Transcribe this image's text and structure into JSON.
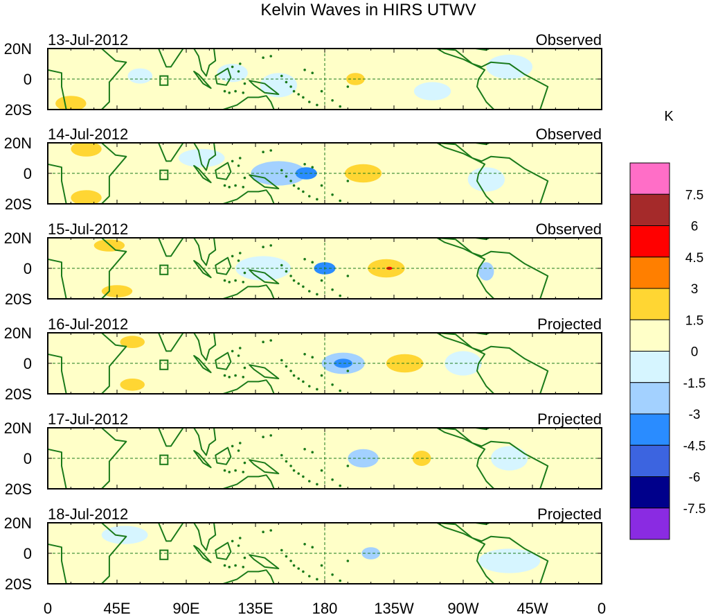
{
  "chart_data": {
    "type": "heatmap",
    "title": "Kelvin Waves in HIRS UTWV",
    "colorbar": {
      "unit_label": "K",
      "levels": [
        "7.5",
        "6",
        "4.5",
        "3",
        "1.5",
        "0",
        "-1.5",
        "-3",
        "-4.5",
        "-6",
        "-7.5"
      ],
      "colors": [
        "#ff6ec7",
        "#a52a2a",
        "#ff0000",
        "#ff7f00",
        "#ffd633",
        "#ffffc8",
        "#d6f5ff",
        "#a3d1ff",
        "#2a8cff",
        "#3c64e0",
        "#00008b",
        "#8a2be2"
      ]
    },
    "x_ticks": [
      "0",
      "45E",
      "90E",
      "135E",
      "180",
      "135W",
      "90W",
      "45W",
      "0"
    ],
    "x_range": [
      0,
      360
    ],
    "y_ticks": [
      "20N",
      "0",
      "20S"
    ],
    "y_range": [
      -20,
      20
    ],
    "panels": [
      {
        "date": "13-Jul-2012",
        "status": "Observed",
        "anomalies": [
          {
            "lon": 40,
            "lat": 0,
            "value": 1.2,
            "rlon": 8,
            "rlat": 3
          },
          {
            "lon": 15,
            "lat": -16,
            "value": 1.5,
            "rlon": 10,
            "rlat": 5
          },
          {
            "lon": 200,
            "lat": 0,
            "value": 1.5,
            "rlon": 6,
            "rlat": 4
          },
          {
            "lon": 60,
            "lat": 2,
            "value": -0.8,
            "rlon": 8,
            "rlat": 5
          },
          {
            "lon": 120,
            "lat": 4,
            "value": -0.9,
            "rlon": 10,
            "rlat": 6
          },
          {
            "lon": 150,
            "lat": -4,
            "value": -1.0,
            "rlon": 12,
            "rlat": 8
          },
          {
            "lon": 250,
            "lat": -8,
            "value": -0.8,
            "rlon": 12,
            "rlat": 6
          },
          {
            "lon": 300,
            "lat": 8,
            "value": -0.7,
            "rlon": 15,
            "rlat": 8
          }
        ]
      },
      {
        "date": "14-Jul-2012",
        "status": "Observed",
        "anomalies": [
          {
            "lon": 168,
            "lat": 0,
            "value": -3.2,
            "rlon": 7,
            "rlat": 4
          },
          {
            "lon": 150,
            "lat": 0,
            "value": -1.6,
            "rlon": 18,
            "rlat": 8
          },
          {
            "lon": 205,
            "lat": 0,
            "value": 1.8,
            "rlon": 12,
            "rlat": 6
          },
          {
            "lon": 75,
            "lat": 0,
            "value": 1.2,
            "rlon": 8,
            "rlat": 3
          },
          {
            "lon": 25,
            "lat": 16,
            "value": 1.5,
            "rlon": 10,
            "rlat": 5
          },
          {
            "lon": 25,
            "lat": -16,
            "value": 1.5,
            "rlon": 10,
            "rlat": 5
          },
          {
            "lon": 285,
            "lat": -4,
            "value": -1.0,
            "rlon": 12,
            "rlat": 8
          },
          {
            "lon": 100,
            "lat": 10,
            "value": -0.6,
            "rlon": 15,
            "rlat": 6
          }
        ]
      },
      {
        "date": "15-Jul-2012",
        "status": "Observed",
        "anomalies": [
          {
            "lon": 180,
            "lat": 0,
            "value": -3.4,
            "rlon": 7,
            "rlat": 4
          },
          {
            "lon": 222,
            "lat": 0,
            "value": 5.0,
            "rlon": 2,
            "rlat": 1
          },
          {
            "lon": 220,
            "lat": 0,
            "value": 1.9,
            "rlon": 12,
            "rlat": 6
          },
          {
            "lon": 85,
            "lat": 0,
            "value": 1.2,
            "rlon": 8,
            "rlat": 3
          },
          {
            "lon": 40,
            "lat": 15,
            "value": 1.5,
            "rlon": 10,
            "rlat": 4
          },
          {
            "lon": 45,
            "lat": -15,
            "value": 1.5,
            "rlon": 10,
            "rlat": 4
          },
          {
            "lon": 285,
            "lat": -2,
            "value": -1.6,
            "rlon": 5,
            "rlat": 6
          },
          {
            "lon": 140,
            "lat": 0,
            "value": -1.0,
            "rlon": 18,
            "rlat": 8
          }
        ]
      },
      {
        "date": "16-Jul-2012",
        "status": "Projected",
        "anomalies": [
          {
            "lon": 192,
            "lat": 0,
            "value": -3.1,
            "rlon": 6,
            "rlat": 3
          },
          {
            "lon": 192,
            "lat": 0,
            "value": -1.6,
            "rlon": 14,
            "rlat": 7
          },
          {
            "lon": 232,
            "lat": 0,
            "value": 1.8,
            "rlon": 12,
            "rlat": 6
          },
          {
            "lon": 55,
            "lat": 14,
            "value": 1.5,
            "rlon": 8,
            "rlat": 4
          },
          {
            "lon": 55,
            "lat": -14,
            "value": 1.5,
            "rlon": 8,
            "rlat": 4
          },
          {
            "lon": 100,
            "lat": 0,
            "value": 1.0,
            "rlon": 8,
            "rlat": 3
          },
          {
            "lon": 270,
            "lat": 0,
            "value": -1.0,
            "rlon": 12,
            "rlat": 8
          }
        ]
      },
      {
        "date": "17-Jul-2012",
        "status": "Projected",
        "anomalies": [
          {
            "lon": 205,
            "lat": 0,
            "value": -1.6,
            "rlon": 10,
            "rlat": 6
          },
          {
            "lon": 243,
            "lat": 0,
            "value": 1.8,
            "rlon": 6,
            "rlat": 5
          },
          {
            "lon": 115,
            "lat": 2,
            "value": 1.2,
            "rlon": 10,
            "rlat": 3
          },
          {
            "lon": 60,
            "lat": 14,
            "value": 1.0,
            "rlon": 10,
            "rlat": 4
          },
          {
            "lon": 60,
            "lat": -14,
            "value": 1.0,
            "rlon": 10,
            "rlat": 4
          },
          {
            "lon": 300,
            "lat": 0,
            "value": -0.8,
            "rlon": 12,
            "rlat": 8
          }
        ]
      },
      {
        "date": "18-Jul-2012",
        "status": "Projected",
        "anomalies": [
          {
            "lon": 210,
            "lat": 0,
            "value": -1.6,
            "rlon": 6,
            "rlat": 4
          },
          {
            "lon": 130,
            "lat": 0,
            "value": 1.0,
            "rlon": 15,
            "rlat": 6
          },
          {
            "lon": 260,
            "lat": 0,
            "value": 0.8,
            "rlon": 20,
            "rlat": 8
          },
          {
            "lon": 50,
            "lat": 12,
            "value": -0.8,
            "rlon": 15,
            "rlat": 6
          },
          {
            "lon": 300,
            "lat": -5,
            "value": -0.9,
            "rlon": 20,
            "rlat": 8
          }
        ]
      }
    ]
  }
}
